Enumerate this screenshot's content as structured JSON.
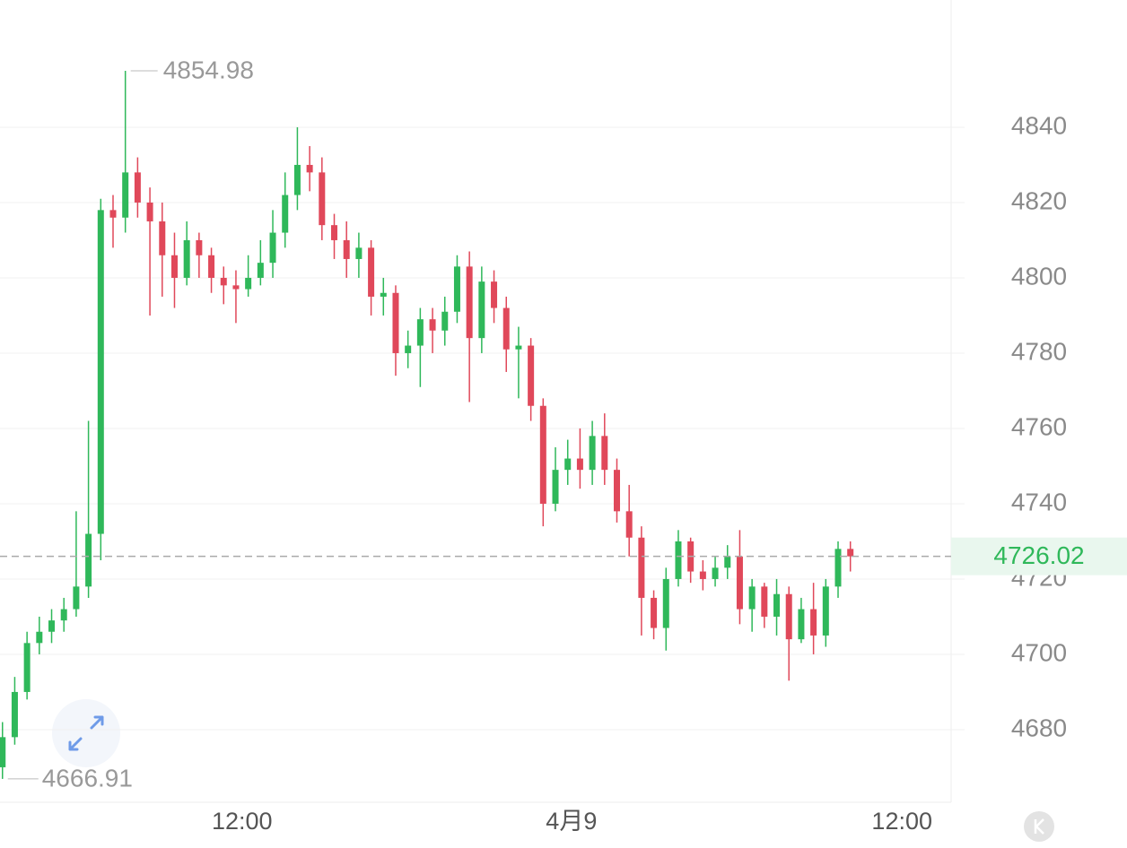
{
  "chart_data": {
    "type": "candlestick",
    "open": [
      4670,
      4678,
      4690,
      4703,
      4706,
      4709,
      4712,
      4718,
      4732,
      4818,
      4816,
      4828,
      4820,
      4815,
      4806,
      4800,
      4810,
      4806,
      4800,
      4798,
      4797,
      4800,
      4804,
      4812,
      4822,
      4830,
      4828,
      4814,
      4810,
      4805,
      4808,
      4795,
      4796,
      4780,
      4782,
      4789,
      4786,
      4791,
      4803,
      4784,
      4799,
      4792,
      4781,
      4782,
      4766,
      4740,
      4749,
      4752,
      4749,
      4758,
      4749,
      4738,
      4731,
      4715,
      4707,
      4720,
      4730,
      4722,
      4720,
      4723,
      4726,
      4712,
      4718,
      4710,
      4716,
      4704,
      4712,
      4705,
      4718,
      4728
    ],
    "high": [
      4682,
      4694,
      4706,
      4710,
      4712,
      4715,
      4738,
      4762,
      4821,
      4822,
      4854.98,
      4832,
      4824,
      4820,
      4812,
      4815,
      4812,
      4808,
      4803,
      4802,
      4806,
      4810,
      4818,
      4828,
      4840,
      4835,
      4832,
      4817,
      4815,
      4812,
      4810,
      4800,
      4798,
      4786,
      4792,
      4792,
      4795,
      4806,
      4807,
      4803,
      4802,
      4795,
      4787,
      4784,
      4768,
      4755,
      4757,
      4760,
      4762,
      4764,
      4752,
      4745,
      4734,
      4717,
      4723,
      4733,
      4731,
      4725,
      4726,
      4729,
      4733,
      4720,
      4719,
      4720,
      4718,
      4715,
      4719,
      4720,
      4730,
      4730
    ],
    "low": [
      4666.91,
      4676,
      4688,
      4700,
      4703,
      4706,
      4710,
      4715,
      4725,
      4808,
      4812,
      4816,
      4790,
      4795,
      4792,
      4798,
      4800,
      4796,
      4793,
      4788,
      4795,
      4798,
      4800,
      4808,
      4818,
      4823,
      4810,
      4805,
      4800,
      4800,
      4790,
      4790,
      4774,
      4776,
      4771,
      4780,
      4782,
      4788,
      4767,
      4780,
      4788,
      4775,
      4768,
      4762,
      4734,
      4738,
      4745,
      4744,
      4745,
      4745,
      4735,
      4726,
      4705,
      4704,
      4701,
      4718,
      4719,
      4717,
      4718,
      4720,
      4708,
      4706,
      4707,
      4705,
      4693,
      4703,
      4700,
      4702,
      4715,
      4722
    ],
    "close": [
      4678,
      4690,
      4703,
      4706,
      4709,
      4712,
      4718,
      4732,
      4818,
      4816,
      4828,
      4820,
      4815,
      4806,
      4800,
      4810,
      4806,
      4800,
      4798,
      4797,
      4800,
      4804,
      4812,
      4822,
      4830,
      4828,
      4814,
      4810,
      4805,
      4808,
      4795,
      4796,
      4780,
      4782,
      4789,
      4786,
      4791,
      4803,
      4784,
      4799,
      4792,
      4781,
      4782,
      4766,
      4740,
      4749,
      4752,
      4749,
      4758,
      4749,
      4738,
      4731,
      4715,
      4707,
      4720,
      4730,
      4722,
      4720,
      4723,
      4726,
      4712,
      4718,
      4710,
      4716,
      4704,
      4712,
      4705,
      4718,
      4728,
      4726.02
    ],
    "up_color": "#2fb85a",
    "down_color": "#e0485a",
    "xlim": [
      -0.2,
      77.2
    ],
    "xticks": [
      {
        "value": 19.5,
        "label": "12:00"
      },
      {
        "value": 46.3,
        "label": "4月9"
      },
      {
        "value": 73.2,
        "label": "12:00"
      }
    ],
    "ylim": [
      4660.7,
      4873.8
    ],
    "yticks": [
      4680,
      4700,
      4720,
      4740,
      4760,
      4780,
      4800,
      4820,
      4840
    ],
    "grid": true
  }
}
